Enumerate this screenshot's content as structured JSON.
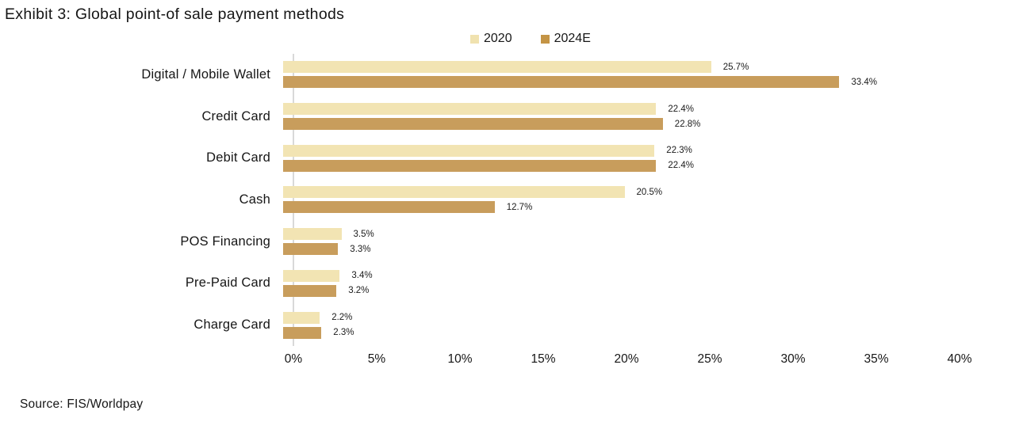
{
  "title": "Exhibit 3: Global point-of sale payment methods",
  "source": "Source: FIS/Worldpay",
  "legend": {
    "items": [
      {
        "label": "2020",
        "color": "#F0E2AF"
      },
      {
        "label": "2024E",
        "color": "#C49445"
      }
    ]
  },
  "chart_data": {
    "type": "bar",
    "orientation": "horizontal",
    "title": "Exhibit 3: Global point-of sale payment methods",
    "categories": [
      "Digital / Mobile Wallet",
      "Credit Card",
      "Debit Card",
      "Cash",
      "POS Financing",
      "Pre-Paid Card",
      "Charge Card"
    ],
    "series": [
      {
        "name": "2020",
        "color": "#F2E4B3",
        "values": [
          25.7,
          22.4,
          22.3,
          20.5,
          3.5,
          3.4,
          2.2
        ],
        "labels": [
          "25.7%",
          "22.4%",
          "22.3%",
          "20.5%",
          "3.5%",
          "3.4%",
          "2.2%"
        ]
      },
      {
        "name": "2024E",
        "color": "#C89D5C",
        "values": [
          33.4,
          22.8,
          22.4,
          12.7,
          3.3,
          3.2,
          2.3
        ],
        "labels": [
          "33.4%",
          "22.8%",
          "22.4%",
          "12.7%",
          "3.3%",
          "3.2%",
          "2.3%"
        ]
      }
    ],
    "xlim": [
      0,
      40
    ],
    "x_ticks": [
      {
        "value": 0,
        "label": "0%"
      },
      {
        "value": 5,
        "label": "5%"
      },
      {
        "value": 10,
        "label": "10%"
      },
      {
        "value": 15,
        "label": "15%"
      },
      {
        "value": 20,
        "label": "20%"
      },
      {
        "value": 25,
        "label": "25%"
      },
      {
        "value": 30,
        "label": "30%"
      },
      {
        "value": 35,
        "label": "35%"
      },
      {
        "value": 40,
        "label": "40%"
      }
    ],
    "grid": false,
    "legend_position": "top-center",
    "value_labels_shown": true
  },
  "colors": {
    "axis_line": "#D9D9D9",
    "text": "#161616",
    "value_label_text": "#1B1B1B"
  }
}
